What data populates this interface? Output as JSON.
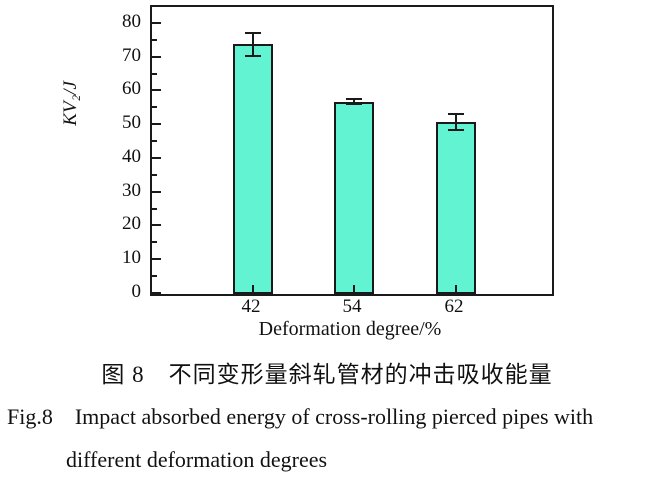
{
  "figure": {
    "caption_cn": "图 8　不同变形量斜轧管材的冲击吸收能量",
    "caption_en_prefix": "Fig.8",
    "caption_en_line1": "Impact absorbed energy of cross-rolling pierced pipes with",
    "caption_en_line2": "different deformation degrees"
  },
  "chart_data": {
    "type": "bar",
    "categories": [
      "42",
      "54",
      "62"
    ],
    "values": [
      74,
      57,
      51
    ],
    "errors": [
      3.4,
      0.8,
      2.4
    ],
    "title": "",
    "xlabel": "Deformation degree/%",
    "ylabel": "KV₂/J",
    "ylim": [
      0,
      85
    ],
    "yticks": [
      0,
      10,
      20,
      30,
      40,
      50,
      60,
      70,
      80
    ],
    "ytick_minor_step": 5,
    "grid": false,
    "legend": "none",
    "bar_color": "#62F3D2",
    "bar_border_color": "#1a1a1a",
    "error_bar_color": "#1a1a1a"
  }
}
